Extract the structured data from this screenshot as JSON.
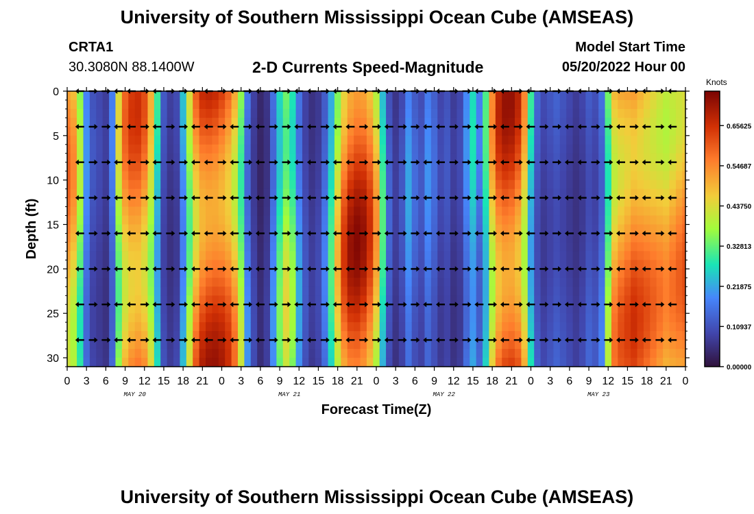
{
  "page_title": "University of Southern Mississippi Ocean Cube (AMSEAS)",
  "footer_title": "University of Southern Mississippi Ocean Cube (AMSEAS)",
  "station": {
    "name": "CRTA1",
    "coords": "30.3080N  88.1400W"
  },
  "subtitle": "2-D Currents Speed-Magnitude",
  "model_start": {
    "label": "Model Start Time",
    "value": "05/20/2022 Hour 00"
  },
  "chart_data": {
    "type": "heatmap",
    "title": "2-D Currents Speed-Magnitude",
    "xlabel": "Forecast Time(Z)",
    "ylabel": "Depth (ft)",
    "x_tick_labels": [
      "0",
      "3",
      "6",
      "9",
      "12",
      "15",
      "18",
      "21",
      "0",
      "3",
      "6",
      "9",
      "12",
      "15",
      "18",
      "21",
      "0",
      "3",
      "6",
      "9",
      "12",
      "15",
      "18",
      "21",
      "0",
      "3",
      "6",
      "9",
      "12",
      "15",
      "18",
      "21",
      "0"
    ],
    "x_range_hours": [
      0,
      96
    ],
    "date_labels": [
      {
        "text": "MAY 20",
        "hour": 10.5
      },
      {
        "text": "MAY 21",
        "hour": 34.5
      },
      {
        "text": "MAY 22",
        "hour": 58.5
      },
      {
        "text": "MAY 23",
        "hour": 82.5
      }
    ],
    "y_ticks": [
      "0",
      "5",
      "10",
      "15",
      "20",
      "25",
      "30"
    ],
    "y_range_ft": [
      0,
      31
    ],
    "colorbar": {
      "unit": "Knots",
      "ticks": [
        "0.65625",
        "0.54687",
        "0.43750",
        "0.32813",
        "0.21875",
        "0.10937",
        "0.00000"
      ],
      "range": [
        0,
        0.75
      ]
    },
    "columns": [
      {
        "h": 0,
        "s": 0.6
      },
      {
        "h": 1,
        "s": 0.55
      },
      {
        "h": 2,
        "s": 0.4
      },
      {
        "h": 3,
        "s": 0.2
      },
      {
        "h": 4,
        "s": 0.12
      },
      {
        "h": 5,
        "s": 0.1
      },
      {
        "h": 6,
        "s": 0.08
      },
      {
        "h": 7,
        "s": 0.18
      },
      {
        "h": 8,
        "s": 0.45
      },
      {
        "h": 9,
        "s": 0.6
      },
      {
        "h": 10,
        "s": 0.65
      },
      {
        "h": 11,
        "s": 0.66
      },
      {
        "h": 12,
        "s": 0.62
      },
      {
        "h": 13,
        "s": 0.5
      },
      {
        "h": 14,
        "s": 0.3
      },
      {
        "h": 15,
        "s": 0.12
      },
      {
        "h": 16,
        "s": 0.08
      },
      {
        "h": 17,
        "s": 0.1
      },
      {
        "h": 18,
        "s": 0.25
      },
      {
        "h": 19,
        "s": 0.45
      },
      {
        "h": 20,
        "s": 0.62
      },
      {
        "h": 21,
        "s": 0.7
      },
      {
        "h": 22,
        "s": 0.72
      },
      {
        "h": 23,
        "s": 0.72
      },
      {
        "h": 24,
        "s": 0.7
      },
      {
        "h": 25,
        "s": 0.66
      },
      {
        "h": 26,
        "s": 0.58
      },
      {
        "h": 27,
        "s": 0.42
      },
      {
        "h": 28,
        "s": 0.2
      },
      {
        "h": 29,
        "s": 0.1
      },
      {
        "h": 30,
        "s": 0.05
      },
      {
        "h": 31,
        "s": 0.08
      },
      {
        "h": 32,
        "s": 0.2
      },
      {
        "h": 33,
        "s": 0.35
      },
      {
        "h": 34,
        "s": 0.45
      },
      {
        "h": 35,
        "s": 0.38
      },
      {
        "h": 36,
        "s": 0.22
      },
      {
        "h": 37,
        "s": 0.12
      },
      {
        "h": 38,
        "s": 0.08
      },
      {
        "h": 39,
        "s": 0.1
      },
      {
        "h": 40,
        "s": 0.18
      },
      {
        "h": 41,
        "s": 0.32
      },
      {
        "h": 42,
        "s": 0.5
      },
      {
        "h": 43,
        "s": 0.65
      },
      {
        "h": 44,
        "s": 0.72
      },
      {
        "h": 45,
        "s": 0.74
      },
      {
        "h": 46,
        "s": 0.72
      },
      {
        "h": 47,
        "s": 0.66
      },
      {
        "h": 48,
        "s": 0.54
      },
      {
        "h": 49,
        "s": 0.32
      },
      {
        "h": 50,
        "s": 0.14
      },
      {
        "h": 51,
        "s": 0.08
      },
      {
        "h": 52,
        "s": 0.12
      },
      {
        "h": 53,
        "s": 0.22
      },
      {
        "h": 54,
        "s": 0.15
      },
      {
        "h": 55,
        "s": 0.12
      },
      {
        "h": 56,
        "s": 0.2
      },
      {
        "h": 57,
        "s": 0.15
      },
      {
        "h": 58,
        "s": 0.1
      },
      {
        "h": 59,
        "s": 0.12
      },
      {
        "h": 60,
        "s": 0.08
      },
      {
        "h": 61,
        "s": 0.1
      },
      {
        "h": 62,
        "s": 0.2
      },
      {
        "h": 63,
        "s": 0.28
      },
      {
        "h": 64,
        "s": 0.18
      },
      {
        "h": 65,
        "s": 0.32
      },
      {
        "h": 66,
        "s": 0.55
      },
      {
        "h": 67,
        "s": 0.68
      },
      {
        "h": 68,
        "s": 0.72
      },
      {
        "h": 69,
        "s": 0.72
      },
      {
        "h": 70,
        "s": 0.68
      },
      {
        "h": 71,
        "s": 0.55
      },
      {
        "h": 72,
        "s": 0.3
      },
      {
        "h": 73,
        "s": 0.14
      },
      {
        "h": 74,
        "s": 0.1
      },
      {
        "h": 75,
        "s": 0.12
      },
      {
        "h": 76,
        "s": 0.14
      },
      {
        "h": 77,
        "s": 0.12
      },
      {
        "h": 78,
        "s": 0.1
      },
      {
        "h": 79,
        "s": 0.08
      },
      {
        "h": 80,
        "s": 0.1
      },
      {
        "h": 81,
        "s": 0.14
      },
      {
        "h": 82,
        "s": 0.12
      },
      {
        "h": 83,
        "s": 0.18
      },
      {
        "h": 84,
        "s": 0.4
      },
      {
        "h": 85,
        "s": 0.58
      },
      {
        "h": 86,
        "s": 0.62
      },
      {
        "h": 87,
        "s": 0.64
      },
      {
        "h": 88,
        "s": 0.66
      },
      {
        "h": 89,
        "s": 0.64
      },
      {
        "h": 90,
        "s": 0.62
      },
      {
        "h": 91,
        "s": 0.6
      },
      {
        "h": 92,
        "s": 0.58
      },
      {
        "h": 93,
        "s": 0.56
      },
      {
        "h": 94,
        "s": 0.58
      },
      {
        "h": 95,
        "s": 0.6
      },
      {
        "h": 96,
        "s": 0.62
      }
    ],
    "vector_depths_ft": [
      0,
      4,
      8,
      12,
      16,
      20,
      24,
      28
    ],
    "vector_hours": [
      0,
      2,
      4,
      6,
      8,
      10,
      12,
      14,
      16,
      18,
      20,
      22,
      24,
      26,
      28,
      30,
      32,
      34,
      36,
      38,
      40,
      42,
      44,
      46,
      48,
      50,
      52,
      54,
      56,
      58,
      60,
      62,
      64,
      66,
      68,
      70,
      72,
      74,
      76,
      78,
      80,
      82,
      84,
      86,
      88,
      90,
      92,
      94,
      96
    ],
    "vector_direction_deg": [
      90,
      270,
      90,
      90,
      270,
      270,
      90,
      270,
      90,
      90,
      270,
      270,
      90,
      270,
      90,
      270,
      90,
      90,
      270,
      270,
      90,
      270,
      270,
      90,
      90,
      270,
      90,
      90,
      270,
      270,
      90,
      90,
      270,
      90,
      270,
      90,
      270,
      90,
      90,
      270,
      270,
      90,
      90,
      270,
      90,
      270,
      90,
      270,
      90
    ]
  }
}
